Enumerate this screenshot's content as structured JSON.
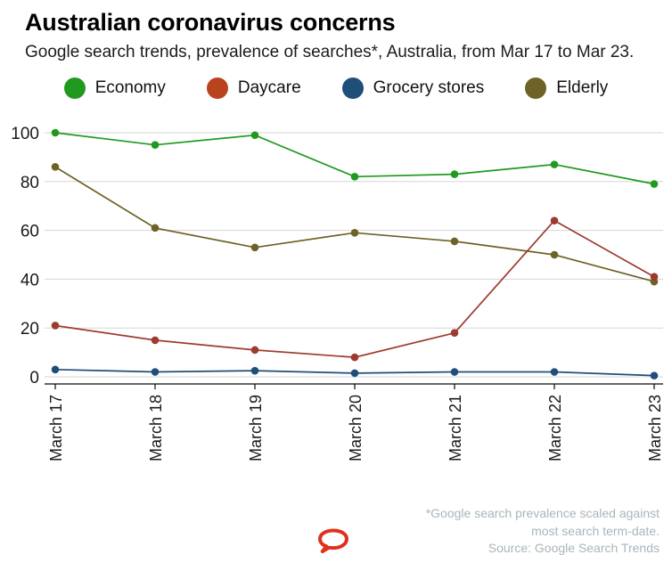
{
  "header": {
    "title": "Australian coronavirus concerns",
    "subtitle": "Google search trends, prevalence of searches*, Australia, from Mar 17 to Mar 23."
  },
  "legend": [
    {
      "label": "Economy",
      "color": "#1f9a1f"
    },
    {
      "label": "Daycare",
      "color": "#b8431f"
    },
    {
      "label": "Grocery stores",
      "color": "#1f4e79"
    },
    {
      "label": "Elderly",
      "color": "#6e6226"
    }
  ],
  "chart_data": {
    "type": "line",
    "categories": [
      "March 17",
      "March 18",
      "March 19",
      "March 20",
      "March 21",
      "March 22",
      "March 23"
    ],
    "series": [
      {
        "name": "Economy",
        "color": "#1f9a1f",
        "values": [
          100,
          95,
          99,
          82,
          83,
          87,
          79
        ]
      },
      {
        "name": "Daycare",
        "color": "#9d3b30",
        "values": [
          21,
          15,
          11,
          8,
          18,
          64,
          41
        ]
      },
      {
        "name": "Grocery stores",
        "color": "#1f4e79",
        "values": [
          3,
          2,
          2.5,
          1.5,
          2,
          2,
          0.5
        ]
      },
      {
        "name": "Elderly",
        "color": "#6e6226",
        "values": [
          86,
          61,
          53,
          59,
          55.5,
          50,
          39
        ]
      }
    ],
    "ylim": [
      0,
      100
    ],
    "yticks": [
      0,
      20,
      40,
      60,
      80,
      100
    ],
    "grid": true,
    "legend_position": "top",
    "xlabel": "",
    "ylabel": ""
  },
  "footer": {
    "note_line1": "*Google search prevalence scaled against",
    "note_line2": "most search term-date.",
    "source": "Source: Google Search Trends"
  },
  "colors": {
    "gridline": "#d5d5d5",
    "axis": "#0a0a0a",
    "tick_label": "#1a1a1a",
    "footnote": "#a9b5bc",
    "logo_red": "#e0301e"
  }
}
